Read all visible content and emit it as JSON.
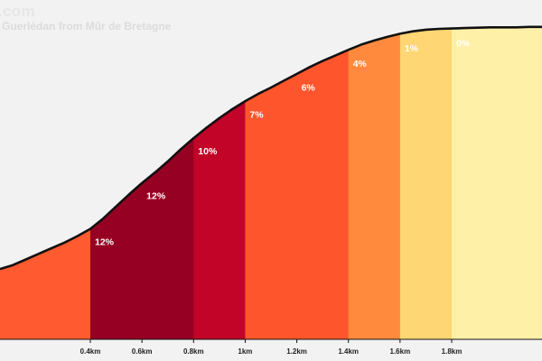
{
  "header": {
    "site_name": ".com",
    "title": "e Guerlédan from Mûr de Bretagne"
  },
  "chart_data": {
    "type": "area",
    "title": "e Guerlédan from Mûr de Bretagne",
    "xlabel": "",
    "ylabel": "",
    "x_unit": "km",
    "xlim": [
      0.05,
      2.15
    ],
    "x_ticks": [
      {
        "value": 0.4,
        "label": "0.4km"
      },
      {
        "value": 0.6,
        "label": "0.6km"
      },
      {
        "value": 0.8,
        "label": "0.8km"
      },
      {
        "value": 1.0,
        "label": "1km"
      },
      {
        "value": 1.2,
        "label": "1.2km"
      },
      {
        "value": 1.4,
        "label": "1.4km"
      },
      {
        "value": 1.6,
        "label": "1.6km"
      },
      {
        "value": 1.8,
        "label": "1.8km"
      }
    ],
    "grid": false,
    "segments": [
      {
        "start": 0.0,
        "end": 0.4,
        "gradient_label": "",
        "color": "#ff5a30"
      },
      {
        "start": 0.4,
        "end": 0.6,
        "gradient_label": "12%",
        "color": "#960022"
      },
      {
        "start": 0.6,
        "end": 0.8,
        "gradient_label": "12%",
        "color": "#960022"
      },
      {
        "start": 0.8,
        "end": 1.0,
        "gradient_label": "10%",
        "color": "#c10428"
      },
      {
        "start": 1.0,
        "end": 1.2,
        "gradient_label": "7%",
        "color": "#ff552c"
      },
      {
        "start": 1.2,
        "end": 1.4,
        "gradient_label": "6%",
        "color": "#ff552c"
      },
      {
        "start": 1.4,
        "end": 1.6,
        "gradient_label": "4%",
        "color": "#ff8a3d"
      },
      {
        "start": 1.6,
        "end": 1.8,
        "gradient_label": "1%",
        "color": "#ffd673"
      },
      {
        "start": 1.8,
        "end": 2.2,
        "gradient_label": "0%",
        "color": "#fff0a8"
      }
    ],
    "elevation_profile": {
      "x": [
        0.05,
        0.1,
        0.15,
        0.2,
        0.25,
        0.3,
        0.35,
        0.4,
        0.45,
        0.5,
        0.55,
        0.6,
        0.65,
        0.7,
        0.75,
        0.8,
        0.85,
        0.9,
        0.95,
        1.0,
        1.05,
        1.1,
        1.15,
        1.2,
        1.25,
        1.3,
        1.35,
        1.4,
        1.45,
        1.5,
        1.55,
        1.6,
        1.65,
        1.7,
        1.75,
        1.8,
        1.85,
        1.9,
        1.95,
        2.0,
        2.05,
        2.1,
        2.15
      ],
      "y": [
        2.0,
        3.0,
        4.4,
        5.8,
        7.2,
        8.6,
        10.2,
        12.0,
        14.6,
        17.6,
        20.6,
        23.4,
        26.0,
        28.8,
        31.8,
        34.6,
        37.2,
        39.6,
        41.8,
        43.8,
        45.6,
        47.2,
        48.9,
        50.6,
        52.3,
        53.8,
        55.2,
        56.6,
        57.9,
        58.9,
        59.8,
        60.6,
        61.2,
        61.6,
        61.8,
        61.9,
        62.0,
        62.1,
        62.2,
        62.2,
        62.2,
        62.3,
        62.3
      ]
    },
    "ylim": [
      -15.5,
      69
    ]
  }
}
